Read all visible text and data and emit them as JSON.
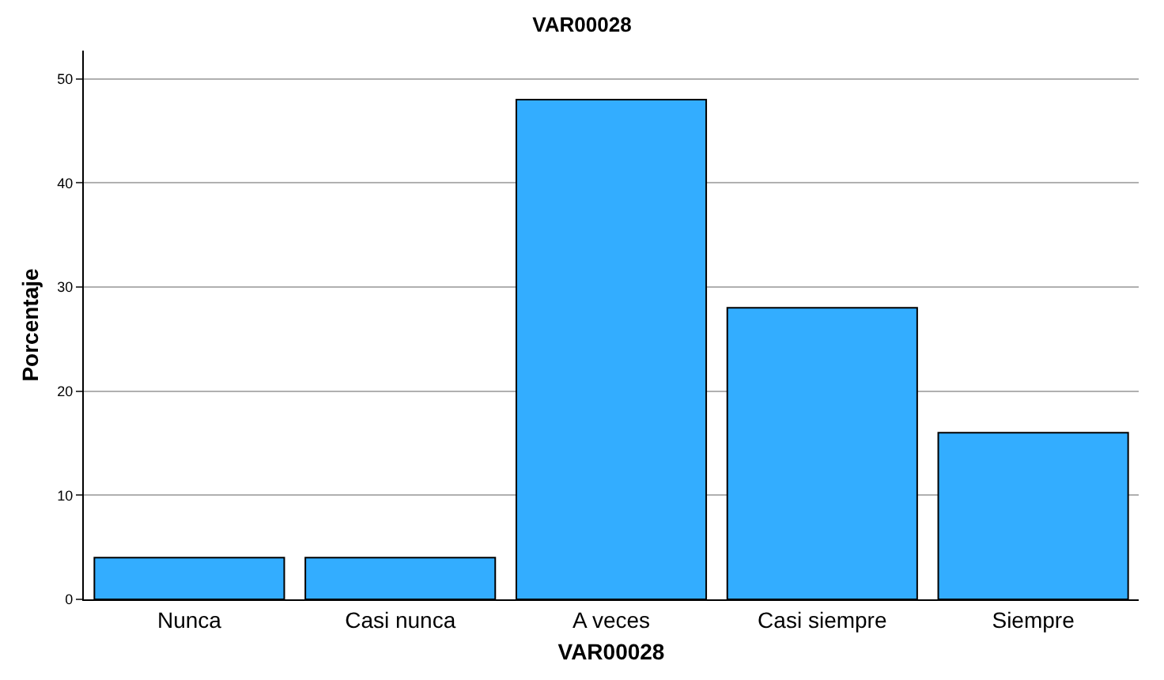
{
  "chart_data": {
    "type": "bar",
    "title": "VAR00028",
    "xlabel": "VAR00028",
    "ylabel": "Porcentaje",
    "categories": [
      "Nunca",
      "Casi nunca",
      "A veces",
      "Casi siempre",
      "Siempre"
    ],
    "values": [
      4,
      4,
      48,
      28,
      16
    ],
    "color": "#33adff",
    "ylim": [
      0,
      52.7
    ],
    "yticks": [
      0,
      10,
      20,
      30,
      40,
      50
    ],
    "grid": "y"
  }
}
